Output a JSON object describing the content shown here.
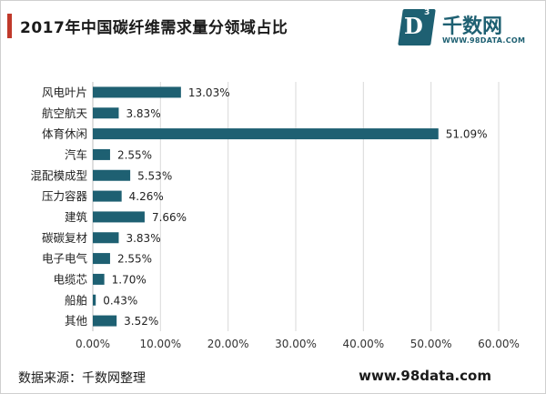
{
  "title": "2017年中国碳纤维需求量分领域占比",
  "logo": {
    "mark": "D",
    "superscript": "3",
    "name": "千数网",
    "url": "WWW.98DATA.COM"
  },
  "footer": {
    "source": "数据来源：千数网整理",
    "site": "www.98data.com"
  },
  "colors": {
    "bar": "#1e6072",
    "grid": "#d9d9d9",
    "accent": "#c0392b"
  },
  "chart_data": {
    "type": "bar",
    "orientation": "horizontal",
    "categories": [
      "风电叶片",
      "航空航天",
      "体育休闲",
      "汽车",
      "混配模成型",
      "压力容器",
      "建筑",
      "碳碳复材",
      "电子电气",
      "电缆芯",
      "船舶",
      "其他"
    ],
    "values": [
      13.03,
      3.83,
      51.09,
      2.55,
      5.53,
      4.26,
      7.66,
      3.83,
      2.55,
      1.7,
      0.43,
      3.52
    ],
    "value_labels": [
      "13.03%",
      "3.83%",
      "51.09%",
      "2.55%",
      "5.53%",
      "4.26%",
      "7.66%",
      "3.83%",
      "2.55%",
      "1.70%",
      "0.43%",
      "3.52%"
    ],
    "xlim": [
      0,
      60
    ],
    "xticks": [
      0,
      10,
      20,
      30,
      40,
      50,
      60
    ],
    "xtick_labels": [
      "0.00%",
      "10.00%",
      "20.00%",
      "30.00%",
      "40.00%",
      "50.00%",
      "60.00%"
    ],
    "grid": true,
    "legend": "none"
  }
}
